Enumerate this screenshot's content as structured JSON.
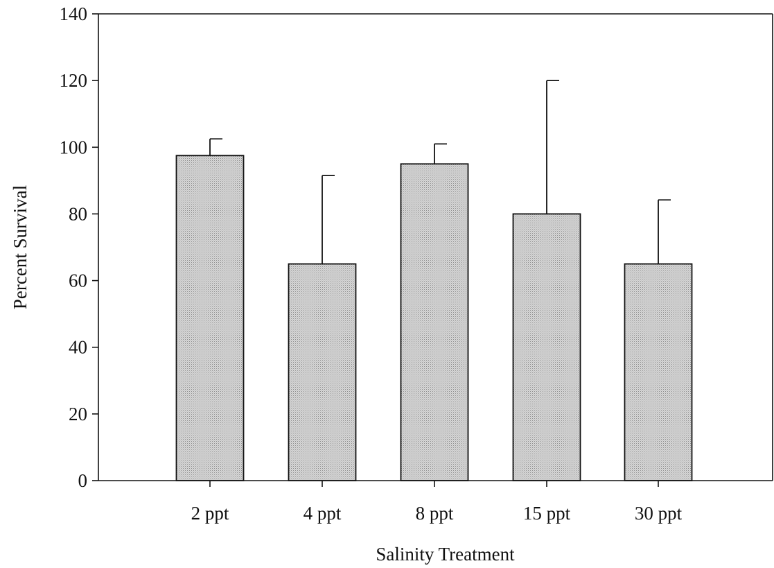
{
  "chart_data": {
    "type": "bar",
    "categories": [
      "2 ppt",
      "4 ppt",
      "8 ppt",
      "15 ppt",
      "30 ppt"
    ],
    "values": [
      97.5,
      65.0,
      95.0,
      80.0,
      65.0
    ],
    "error_upper": [
      102.5,
      91.5,
      101.0,
      120.0,
      84.2
    ],
    "xlabel": "Salinity Treatment",
    "ylabel": "Percent Survival",
    "ylim": [
      0,
      140
    ],
    "yticks": [
      0,
      20,
      40,
      60,
      80,
      100,
      120,
      140
    ],
    "grid": false,
    "bar_color": "#c8c8c8"
  }
}
